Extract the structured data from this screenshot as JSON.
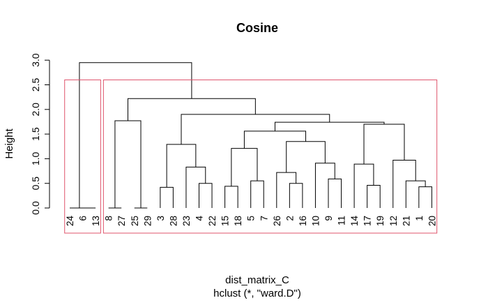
{
  "chart_data": {
    "type": "dendrogram",
    "title": "Cosine",
    "xlabel": "dist_matrix_C",
    "sublabel": "hclust (*, \"ward.D\")",
    "ylabel": "Height",
    "ylim": [
      0,
      3.0
    ],
    "yticks": [
      "0.0",
      "0.5",
      "1.0",
      "1.5",
      "2.0",
      "2.5",
      "3.0"
    ],
    "leaf_order": [
      "24",
      "6",
      "13",
      "8",
      "27",
      "25",
      "29",
      "3",
      "28",
      "23",
      "4",
      "22",
      "15",
      "18",
      "5",
      "7",
      "26",
      "2",
      "16",
      "10",
      "9",
      "11",
      "14",
      "17",
      "19",
      "12",
      "21",
      "1",
      "20"
    ],
    "merges": [
      {
        "a": "L:6",
        "b": "L:13",
        "h": 0.0
      },
      {
        "a": "L:24",
        "b": "M:0",
        "h": 0.0
      },
      {
        "a": "L:8",
        "b": "L:27",
        "h": 0.0
      },
      {
        "a": "L:25",
        "b": "L:29",
        "h": 0.0
      },
      {
        "a": "L:3",
        "b": "L:28",
        "h": 0.42
      },
      {
        "a": "L:4",
        "b": "L:22",
        "h": 0.5
      },
      {
        "a": "L:15",
        "b": "L:18",
        "h": 0.44
      },
      {
        "a": "L:5",
        "b": "L:7",
        "h": 0.55
      },
      {
        "a": "L:2",
        "b": "L:16",
        "h": 0.5
      },
      {
        "a": "L:26",
        "b": "M:8",
        "h": 0.72
      },
      {
        "a": "L:9",
        "b": "L:11",
        "h": 0.59
      },
      {
        "a": "L:10",
        "b": "M:10",
        "h": 0.91
      },
      {
        "a": "L:17",
        "b": "L:19",
        "h": 0.46
      },
      {
        "a": "L:14",
        "b": "M:12",
        "h": 0.89
      },
      {
        "a": "L:1",
        "b": "L:20",
        "h": 0.43
      },
      {
        "a": "L:21",
        "b": "M:14",
        "h": 0.55
      },
      {
        "a": "L:12",
        "b": "M:15",
        "h": 0.97
      },
      {
        "a": "L:23",
        "b": "M:5",
        "h": 0.83
      },
      {
        "a": "M:4",
        "b": "M:17",
        "h": 1.29
      },
      {
        "a": "M:6",
        "b": "M:7",
        "h": 1.21
      },
      {
        "a": "M:9",
        "b": "M:11",
        "h": 1.35
      },
      {
        "a": "M:19",
        "b": "M:20",
        "h": 1.56
      },
      {
        "a": "M:13",
        "b": "M:16",
        "h": 1.7
      },
      {
        "a": "M:21",
        "b": "M:22",
        "h": 1.74
      },
      {
        "a": "M:18",
        "b": "M:23",
        "h": 1.9
      },
      {
        "a": "M:2",
        "b": "M:3",
        "h": 1.77
      },
      {
        "a": "M:25",
        "b": "M:24",
        "h": 2.22
      },
      {
        "a": "M:1",
        "b": "M:26",
        "h": 2.95
      }
    ],
    "cluster_boxes": [
      {
        "leaves": [
          "24",
          "6",
          "13"
        ]
      },
      {
        "leaves": [
          "8",
          "27",
          "25",
          "29",
          "3",
          "28",
          "23",
          "4",
          "22",
          "15",
          "18",
          "5",
          "7",
          "26",
          "2",
          "16",
          "10",
          "9",
          "11",
          "14",
          "17",
          "19",
          "12",
          "21",
          "1",
          "20"
        ]
      }
    ],
    "cluster_box_top": 2.6,
    "colors": {
      "lines": "#000000",
      "cluster_box": "#df536b"
    }
  }
}
